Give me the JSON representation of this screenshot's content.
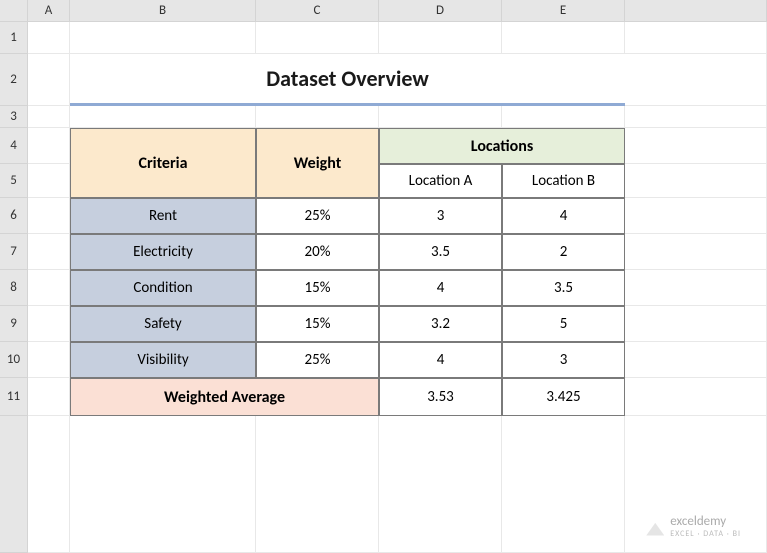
{
  "columns": [
    "",
    "A",
    "B",
    "C",
    "D",
    "E",
    ""
  ],
  "rows": [
    "",
    "1",
    "2",
    "3",
    "4",
    "5",
    "6",
    "7",
    "8",
    "9",
    "10",
    "11",
    ""
  ],
  "title": "Dataset Overview",
  "headers": {
    "criteria": "Criteria",
    "weight": "Weight",
    "locations": "Locations",
    "location_a": "Location A",
    "location_b": "Location B"
  },
  "data": {
    "criteria": [
      "Rent",
      "Electricity",
      "Condition",
      "Safety",
      "Visibility"
    ],
    "weights": [
      "25%",
      "20%",
      "15%",
      "15%",
      "25%"
    ],
    "location_a": [
      "3",
      "3.5",
      "4",
      "3.2",
      "4"
    ],
    "location_b": [
      "4",
      "2",
      "3.5",
      "5",
      "3"
    ]
  },
  "footer": {
    "label": "Weighted Average",
    "loc_a": "3.53",
    "loc_b": "3.425"
  },
  "watermark": {
    "name": "exceldemy",
    "sub": "EXCEL · DATA · BI"
  },
  "colors": {
    "header_bg": "#e6e6e6",
    "criteria_hdr_bg": "#fce9cc",
    "locations_hdr_bg": "#e6efda",
    "criteria_cell_bg": "#c6cfde",
    "footer_bg": "#fbe0d5",
    "title_underline": "#8faad4",
    "border": "#7a7a7a"
  }
}
